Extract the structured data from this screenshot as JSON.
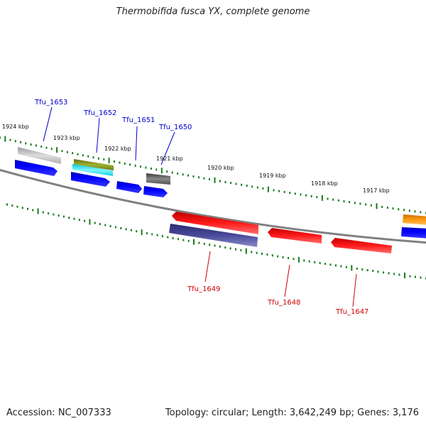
{
  "title": "Thermobifida fusca YX, complete genome",
  "accession": "Accession: NC_007333",
  "summary": "Topology: circular; Length: 3,642,249 bp; Genes: 3,176",
  "ruler_labels": [
    "1924 kbp",
    "1923 kbp",
    "1922 kbp",
    "1921 kbp",
    "1920 kbp",
    "1919 kbp",
    "1918 kbp",
    "1917 kbp"
  ],
  "gene_labels": {
    "tfu_1653": "Tfu_1653",
    "tfu_1652": "Tfu_1652",
    "tfu_1651": "Tfu_1651",
    "tfu_1650": "Tfu_1650",
    "tfu_1649": "Tfu_1649",
    "tfu_1648": "Tfu_1648",
    "tfu_1647": "Tfu_1647"
  },
  "colors": {
    "backbone": "#808080",
    "tick": "#1a7a1a",
    "forward_strand": "#0000ee",
    "reverse_strand": "#ee0000",
    "label_forward": "#0000cc",
    "label_reverse": "#cc0000"
  }
}
